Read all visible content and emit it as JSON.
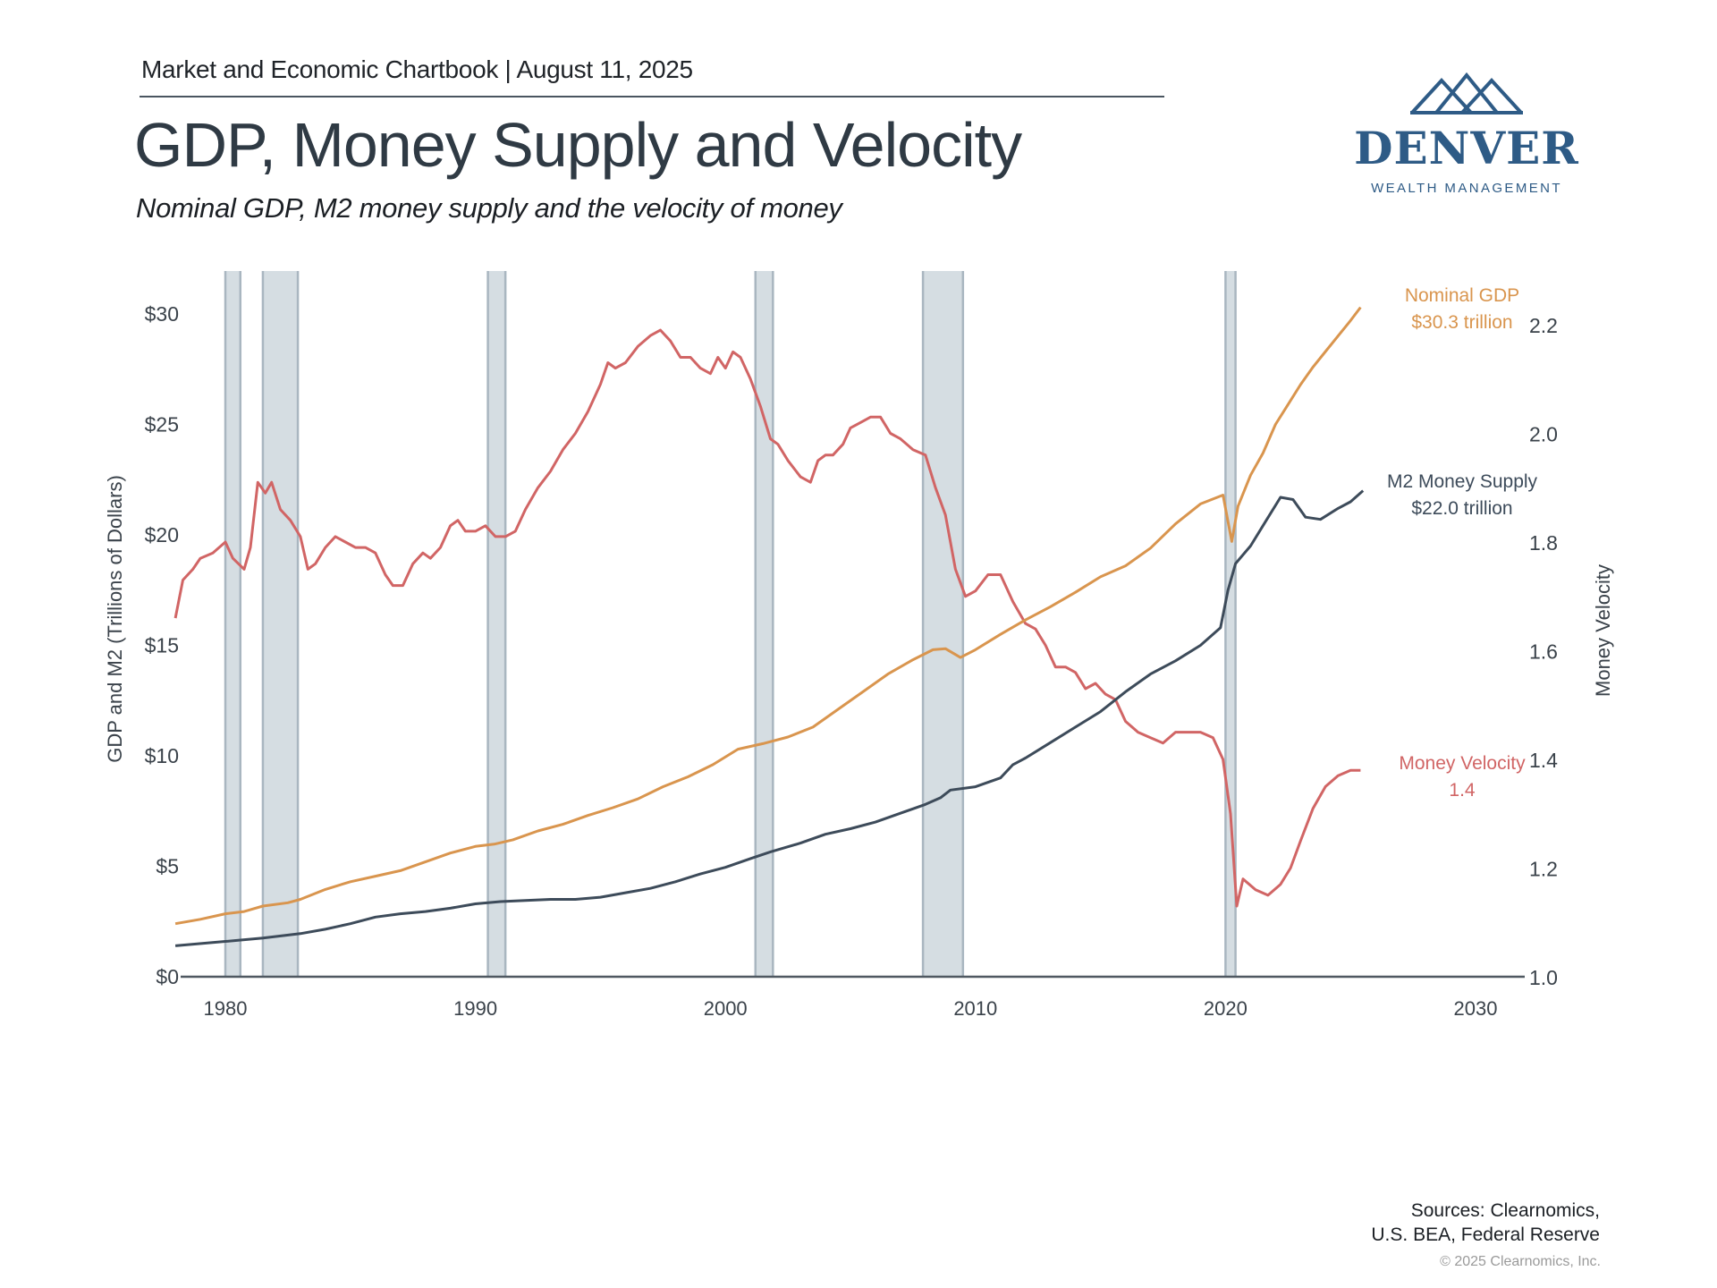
{
  "header": {
    "kicker": "Market and Economic Chartbook | August 11, 2025",
    "title": "GDP, Money Supply and Velocity",
    "subtitle": "Nominal GDP, M2 money supply and the velocity of money"
  },
  "logo": {
    "name": "DENVER",
    "tagline": "WEALTH MANAGEMENT",
    "color": "#2e5b86"
  },
  "footer": {
    "sources_line1": "Sources: Clearnomics,",
    "sources_line2": "U.S. BEA, Federal Reserve",
    "copyright": "© 2025 Clearnomics, Inc."
  },
  "chart_data": {
    "type": "line",
    "title": "GDP, Money Supply and Velocity",
    "xlabel": "",
    "ylabel": "GDP and M2 (Trillions of Dollars)",
    "y2label": "Money Velocity",
    "xlim": [
      1978,
      2032
    ],
    "ylim": [
      0,
      30
    ],
    "y2lim": [
      1.0,
      2.2
    ],
    "x_ticks": [
      1980,
      1990,
      2000,
      2010,
      2020,
      2030
    ],
    "y_ticks": [
      0,
      5,
      10,
      15,
      20,
      25,
      30
    ],
    "y_tick_labels": [
      "$0",
      "$5",
      "$10",
      "$15",
      "$20",
      "$25",
      "$30"
    ],
    "y2_ticks": [
      1.0,
      1.2,
      1.4,
      1.6,
      1.8,
      2.0,
      2.2
    ],
    "y2_tick_labels": [
      "1.0",
      "1.2",
      "1.4",
      "1.6",
      "1.8",
      "2.0",
      "2.2"
    ],
    "grid": false,
    "legend": "none (direct end-of-line labels, right)",
    "recessions": [
      {
        "start": 1980.0,
        "end": 1980.6
      },
      {
        "start": 1981.5,
        "end": 1982.9
      },
      {
        "start": 1990.5,
        "end": 1991.2
      },
      {
        "start": 2001.2,
        "end": 2001.9
      },
      {
        "start": 2007.9,
        "end": 2009.5
      },
      {
        "start": 2020.0,
        "end": 2020.4
      }
    ],
    "series": [
      {
        "name": "Nominal GDP",
        "axis": "left",
        "color": "#d9954e",
        "label_line1": "Nominal GDP",
        "label_line2": "$30.3 trillion",
        "x": [
          1978.0,
          1979.0,
          1980.0,
          1980.75,
          1981.5,
          1982.5,
          1983.0,
          1984.0,
          1985.0,
          1986.0,
          1987.0,
          1988.0,
          1989.0,
          1990.0,
          1990.75,
          1991.5,
          1992.5,
          1993.5,
          1994.5,
          1995.5,
          1996.5,
          1997.5,
          1998.5,
          1999.5,
          2000.5,
          2001.5,
          2002.5,
          2003.5,
          2004.5,
          2005.5,
          2006.5,
          2007.5,
          2008.3,
          2008.8,
          2009.4,
          2010.0,
          2011.0,
          2012.0,
          2013.0,
          2014.0,
          2015.0,
          2016.0,
          2017.0,
          2018.0,
          2019.0,
          2019.9,
          2020.25,
          2020.5,
          2021.0,
          2021.5,
          2022.0,
          2022.5,
          2023.0,
          2023.5,
          2024.0,
          2024.5,
          2025.0,
          2025.4
        ],
        "values": [
          2.4,
          2.6,
          2.85,
          2.95,
          3.2,
          3.35,
          3.5,
          3.95,
          4.3,
          4.55,
          4.8,
          5.2,
          5.6,
          5.9,
          6.0,
          6.2,
          6.6,
          6.9,
          7.3,
          7.65,
          8.05,
          8.6,
          9.05,
          9.6,
          10.3,
          10.55,
          10.85,
          11.3,
          12.1,
          12.9,
          13.7,
          14.35,
          14.8,
          14.85,
          14.45,
          14.8,
          15.5,
          16.15,
          16.75,
          17.4,
          18.1,
          18.6,
          19.4,
          20.5,
          21.4,
          21.8,
          19.7,
          21.3,
          22.7,
          23.7,
          25.0,
          25.9,
          26.8,
          27.6,
          28.3,
          29.0,
          29.7,
          30.3
        ]
      },
      {
        "name": "M2 Money Supply",
        "axis": "left",
        "color": "#3d4b5a",
        "label_line1": "M2 Money Supply",
        "label_line2": "$22.0 trillion",
        "x": [
          1978.0,
          1980.0,
          1981.5,
          1983.0,
          1984.0,
          1985.0,
          1986.0,
          1987.0,
          1988.0,
          1989.0,
          1990.0,
          1991.0,
          1992.0,
          1993.0,
          1994.0,
          1995.0,
          1996.0,
          1997.0,
          1998.0,
          1999.0,
          2000.0,
          2001.0,
          2001.8,
          2003.0,
          2004.0,
          2005.0,
          2006.0,
          2007.0,
          2008.0,
          2008.6,
          2009.0,
          2010.0,
          2011.0,
          2011.5,
          2012.0,
          2013.0,
          2014.0,
          2015.0,
          2016.0,
          2017.0,
          2018.0,
          2019.0,
          2019.8,
          2020.1,
          2020.4,
          2021.0,
          2021.6,
          2022.2,
          2022.7,
          2023.2,
          2023.8,
          2024.5,
          2025.0,
          2025.5
        ],
        "values": [
          1.4,
          1.6,
          1.75,
          1.95,
          2.15,
          2.4,
          2.7,
          2.85,
          2.95,
          3.1,
          3.3,
          3.4,
          3.45,
          3.5,
          3.5,
          3.6,
          3.8,
          4.0,
          4.3,
          4.65,
          4.95,
          5.35,
          5.65,
          6.05,
          6.45,
          6.7,
          7.0,
          7.4,
          7.8,
          8.1,
          8.45,
          8.6,
          9.0,
          9.6,
          9.9,
          10.6,
          11.3,
          12.0,
          12.9,
          13.7,
          14.3,
          15.0,
          15.8,
          17.5,
          18.7,
          19.5,
          20.6,
          21.7,
          21.6,
          20.8,
          20.7,
          21.2,
          21.5,
          22.0
        ]
      },
      {
        "name": "Money Velocity",
        "axis": "right",
        "color": "#d16565",
        "label_line1": "Money Velocity",
        "label_line2": "1.4",
        "x": [
          1978.0,
          1978.3,
          1978.7,
          1979.0,
          1979.5,
          1980.0,
          1980.3,
          1980.75,
          1981.0,
          1981.3,
          1981.6,
          1981.85,
          1982.2,
          1982.6,
          1983.0,
          1983.3,
          1983.6,
          1984.0,
          1984.4,
          1984.8,
          1985.2,
          1985.6,
          1986.0,
          1986.4,
          1986.7,
          1987.1,
          1987.5,
          1987.9,
          1988.2,
          1988.6,
          1989.0,
          1989.3,
          1989.6,
          1990.0,
          1990.4,
          1990.8,
          1991.2,
          1991.6,
          1992.0,
          1992.5,
          1993.0,
          1993.5,
          1994.0,
          1994.5,
          1995.0,
          1995.3,
          1995.6,
          1996.0,
          1996.5,
          1997.0,
          1997.4,
          1997.8,
          1998.2,
          1998.6,
          1999.0,
          1999.4,
          1999.7,
          2000.0,
          2000.3,
          2000.6,
          2001.0,
          2001.4,
          2001.8,
          2002.1,
          2002.5,
          2003.0,
          2003.4,
          2003.7,
          2004.0,
          2004.3,
          2004.7,
          2005.0,
          2005.4,
          2005.8,
          2006.2,
          2006.6,
          2007.0,
          2007.5,
          2008.0,
          2008.4,
          2008.8,
          2009.2,
          2009.6,
          2010.0,
          2010.5,
          2011.0,
          2011.5,
          2012.0,
          2012.4,
          2012.8,
          2013.2,
          2013.6,
          2014.0,
          2014.4,
          2014.8,
          2015.2,
          2015.6,
          2016.0,
          2016.5,
          2017.0,
          2017.5,
          2018.0,
          2018.6,
          2019.0,
          2019.5,
          2019.9,
          2020.2,
          2020.45,
          2020.7,
          2021.2,
          2021.7,
          2022.2,
          2022.6,
          2023.0,
          2023.5,
          2024.0,
          2024.5,
          2025.0,
          2025.4
        ],
        "values": [
          1.66,
          1.73,
          1.75,
          1.77,
          1.78,
          1.8,
          1.77,
          1.75,
          1.79,
          1.91,
          1.89,
          1.91,
          1.86,
          1.84,
          1.81,
          1.75,
          1.76,
          1.79,
          1.81,
          1.8,
          1.79,
          1.79,
          1.78,
          1.74,
          1.72,
          1.72,
          1.76,
          1.78,
          1.77,
          1.79,
          1.83,
          1.84,
          1.82,
          1.82,
          1.83,
          1.81,
          1.81,
          1.82,
          1.86,
          1.9,
          1.93,
          1.97,
          2.0,
          2.04,
          2.09,
          2.13,
          2.12,
          2.13,
          2.16,
          2.18,
          2.19,
          2.17,
          2.14,
          2.14,
          2.12,
          2.11,
          2.14,
          2.12,
          2.15,
          2.14,
          2.1,
          2.05,
          1.99,
          1.98,
          1.95,
          1.92,
          1.91,
          1.95,
          1.96,
          1.96,
          1.98,
          2.01,
          2.02,
          2.03,
          2.03,
          2.0,
          1.99,
          1.97,
          1.96,
          1.9,
          1.85,
          1.75,
          1.7,
          1.71,
          1.74,
          1.74,
          1.69,
          1.65,
          1.64,
          1.61,
          1.57,
          1.57,
          1.56,
          1.53,
          1.54,
          1.52,
          1.51,
          1.47,
          1.45,
          1.44,
          1.43,
          1.45,
          1.45,
          1.45,
          1.44,
          1.4,
          1.3,
          1.13,
          1.18,
          1.16,
          1.15,
          1.17,
          1.2,
          1.25,
          1.31,
          1.35,
          1.37,
          1.38,
          1.38
        ]
      }
    ]
  }
}
